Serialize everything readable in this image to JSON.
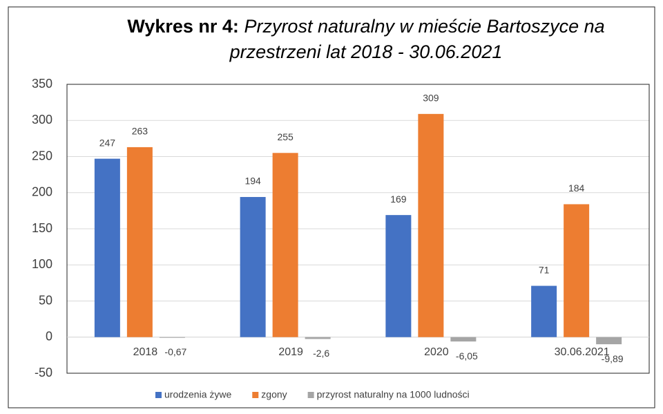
{
  "chart_data": {
    "type": "bar",
    "title_prefix": "Wykres nr 4:",
    "title": "Przyrost naturalny w mieście Bartoszyce na przestrzeni lat 2018 - 30.06.2021",
    "categories": [
      "2018",
      "2019",
      "2020",
      "30.06.2021"
    ],
    "series": [
      {
        "name": "urodzenia żywe",
        "color": "#4472c4",
        "values": [
          247,
          194,
          169,
          71
        ]
      },
      {
        "name": "zgony",
        "color": "#ed7d31",
        "values": [
          263,
          255,
          309,
          184
        ]
      },
      {
        "name": "przyrost naturalny na 1000 ludności",
        "color": "#a5a5a5",
        "values": [
          -0.67,
          -2.6,
          -6.05,
          -9.89
        ],
        "value_labels": [
          "-0,67",
          "-2,6",
          "-6,05",
          "-9,89"
        ]
      }
    ],
    "ylim": [
      -50,
      350
    ],
    "yticks": [
      -50,
      0,
      50,
      100,
      150,
      200,
      250,
      300,
      350
    ],
    "grid": true,
    "legend": "bottom"
  }
}
